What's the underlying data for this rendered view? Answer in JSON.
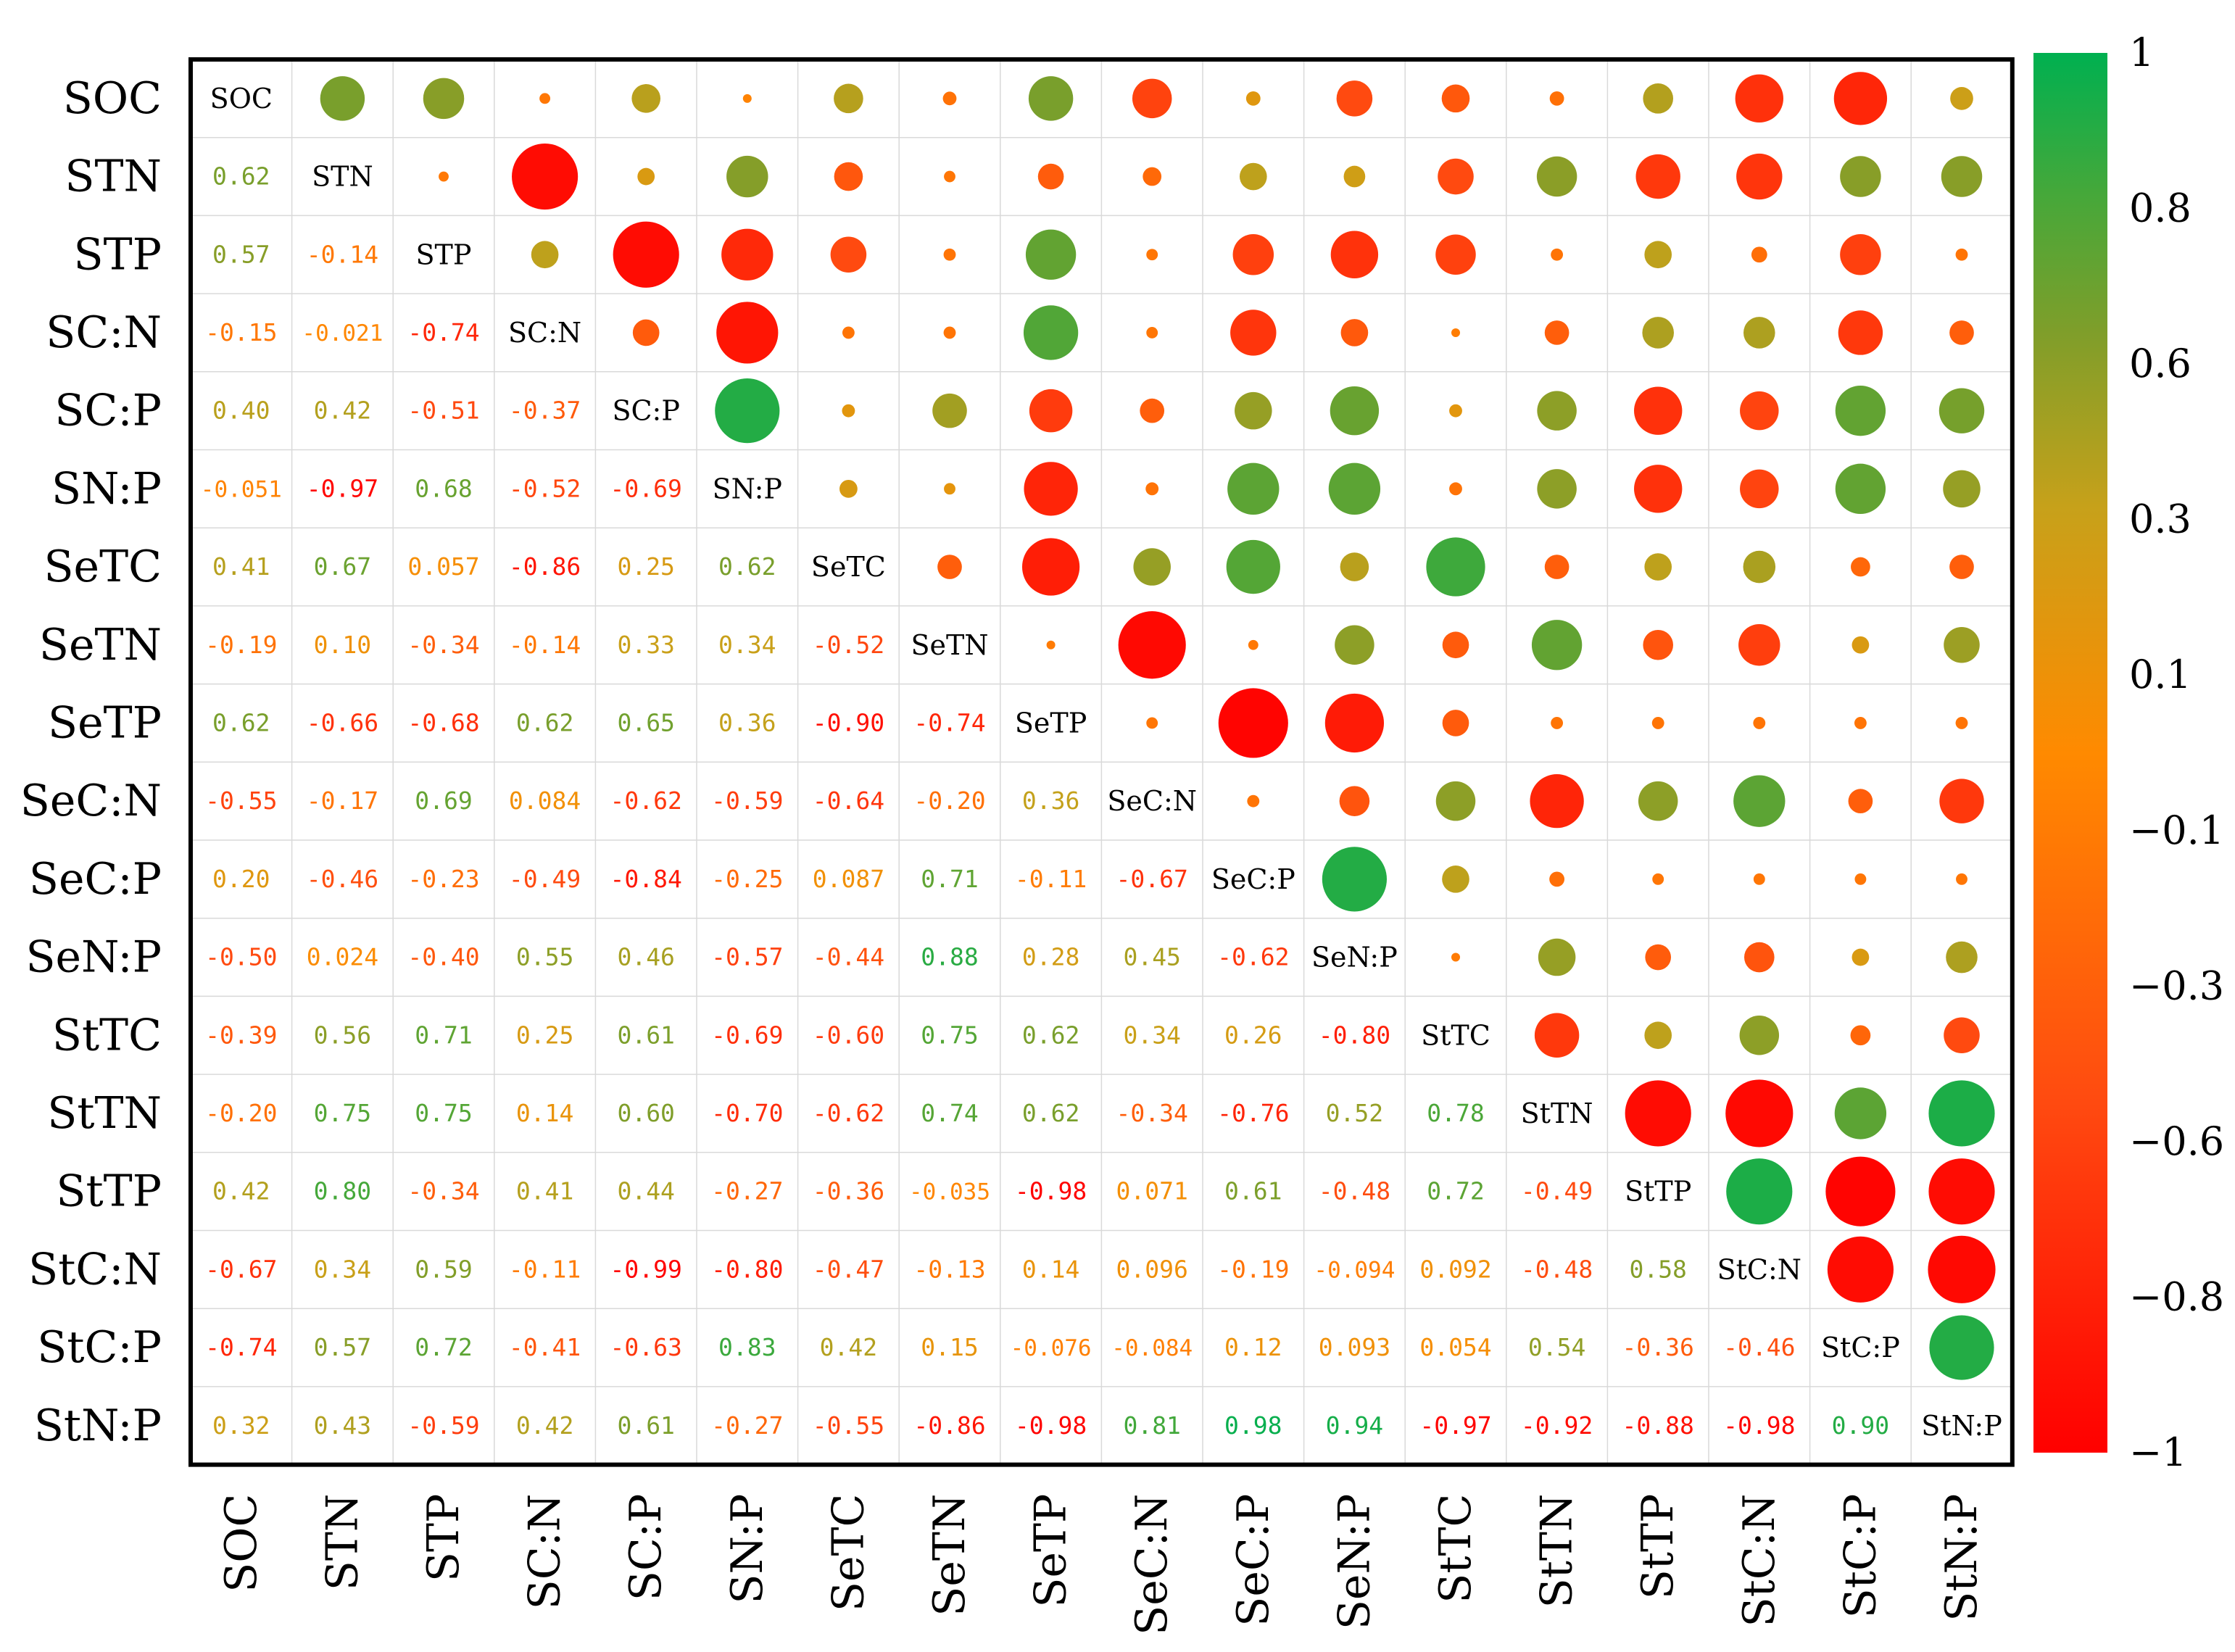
{
  "chart_data": {
    "type": "heatmap",
    "variant": "correlation-matrix-circles-lower-values",
    "variables": [
      "SOC",
      "STN",
      "STP",
      "SC:N",
      "SC:P",
      "SN:P",
      "SeTC",
      "SeTN",
      "SeTP",
      "SeC:N",
      "SeC:P",
      "SeN:P",
      "StTC",
      "StTN",
      "StTP",
      "StC:N",
      "StC:P",
      "StN:P"
    ],
    "lower_labels": [
      [
        "0.62"
      ],
      [
        "0.57",
        "-0.14"
      ],
      [
        "-0.15",
        "-0.021",
        "-0.74"
      ],
      [
        "0.40",
        "0.42",
        "-0.51",
        "-0.37"
      ],
      [
        "-0.051",
        "-0.97",
        "0.68",
        "-0.52",
        "-0.69"
      ],
      [
        "0.41",
        "0.67",
        "0.057",
        "-0.86",
        "0.25",
        "0.62"
      ],
      [
        "-0.19",
        "0.10",
        "-0.34",
        "-0.14",
        "0.33",
        "0.34",
        "-0.52"
      ],
      [
        "0.62",
        "-0.66",
        "-0.68",
        "0.62",
        "0.65",
        "0.36",
        "-0.90",
        "-0.74"
      ],
      [
        "-0.55",
        "-0.17",
        "0.69",
        "0.084",
        "-0.62",
        "-0.59",
        "-0.64",
        "-0.20",
        "0.36"
      ],
      [
        "0.20",
        "-0.46",
        "-0.23",
        "-0.49",
        "-0.84",
        "-0.25",
        "0.087",
        "0.71",
        "-0.11",
        "-0.67"
      ],
      [
        "-0.50",
        "0.024",
        "-0.40",
        "0.55",
        "0.46",
        "-0.57",
        "-0.44",
        "0.88",
        "0.28",
        "0.45",
        "-0.62"
      ],
      [
        "-0.39",
        "0.56",
        "0.71",
        "0.25",
        "0.61",
        "-0.69",
        "-0.60",
        "0.75",
        "0.62",
        "0.34",
        "0.26",
        "-0.80"
      ],
      [
        "-0.20",
        "0.75",
        "0.75",
        "0.14",
        "0.60",
        "-0.70",
        "-0.62",
        "0.74",
        "0.62",
        "-0.34",
        "-0.76",
        "0.52",
        "0.78"
      ],
      [
        "0.42",
        "0.80",
        "-0.34",
        "0.41",
        "0.44",
        "-0.27",
        "-0.36",
        "-0.035",
        "-0.98",
        "0.071",
        "0.61",
        "-0.48",
        "0.72",
        "-0.49"
      ],
      [
        "-0.67",
        "0.34",
        "0.59",
        "-0.11",
        "-0.99",
        "-0.80",
        "-0.47",
        "-0.13",
        "0.14",
        "0.096",
        "-0.19",
        "-0.094",
        "0.092",
        "-0.48",
        "0.58"
      ],
      [
        "-0.74",
        "0.57",
        "0.72",
        "-0.41",
        "-0.63",
        "0.83",
        "0.42",
        "0.15",
        "-0.076",
        "-0.084",
        "0.12",
        "0.093",
        "0.054",
        "0.54",
        "-0.36",
        "-0.46"
      ],
      [
        "0.32",
        "0.43",
        "-0.59",
        "0.42",
        "0.61",
        "-0.27",
        "-0.55",
        "-0.86",
        "-0.98",
        "0.81",
        "0.98",
        "0.94",
        "-0.97",
        "-0.92",
        "-0.88",
        "-0.98",
        "0.90"
      ]
    ],
    "upper_circles": [
      [
        0.62,
        0.57,
        -0.15,
        0.4,
        -0.051,
        0.41,
        -0.19,
        0.62,
        -0.55,
        0.2,
        -0.5,
        -0.39,
        -0.2,
        0.42,
        -0.67,
        -0.74,
        0.32
      ],
      [
        -0.14,
        -0.92,
        0.24,
        0.58,
        -0.4,
        -0.16,
        -0.36,
        -0.26,
        0.38,
        0.3,
        -0.5,
        0.56,
        -0.62,
        -0.64,
        0.57,
        0.57
      ],
      [
        0.38,
        -0.92,
        -0.72,
        -0.5,
        -0.17,
        0.7,
        -0.16,
        -0.57,
        -0.66,
        -0.56,
        -0.17,
        0.38,
        -0.22,
        -0.57,
        -0.17
      ],
      [
        -0.37,
        -0.86,
        -0.17,
        -0.17,
        0.76,
        -0.16,
        -0.64,
        -0.38,
        -0.1,
        -0.34,
        0.44,
        0.44,
        -0.62,
        -0.34
      ],
      [
        0.9,
        0.18,
        0.48,
        -0.6,
        -0.34,
        0.52,
        0.68,
        0.18,
        0.55,
        -0.67,
        -0.54,
        0.7,
        0.63
      ],
      [
        0.25,
        0.16,
        -0.75,
        -0.18,
        0.72,
        0.72,
        -0.18,
        0.55,
        -0.67,
        -0.54,
        0.7,
        0.52
      ],
      [
        -0.34,
        -0.8,
        0.52,
        0.75,
        0.4,
        0.82,
        -0.34,
        0.38,
        0.45,
        -0.27,
        -0.34
      ],
      [
        -0.12,
        -0.94,
        -0.14,
        0.55,
        -0.37,
        0.7,
        -0.42,
        -0.58,
        0.24,
        0.5
      ],
      [
        -0.16,
        -0.97,
        -0.82,
        -0.37,
        -0.17,
        -0.17,
        -0.17,
        -0.17,
        -0.17
      ],
      [
        -0.17,
        -0.42,
        0.55,
        -0.75,
        0.55,
        0.72,
        -0.34,
        -0.62
      ],
      [
        0.9,
        0.38,
        -0.21,
        -0.16,
        -0.16,
        -0.16,
        -0.16
      ],
      [
        -0.12,
        0.52,
        -0.36,
        -0.42,
        0.24,
        0.44
      ],
      [
        -0.62,
        0.38,
        0.55,
        -0.28,
        -0.5
      ],
      [
        -0.92,
        -0.94,
        0.72,
        0.92
      ],
      [
        0.92,
        -0.97,
        -0.92
      ],
      [
        -0.92,
        -0.94
      ],
      [
        0.9
      ]
    ],
    "color_scale": {
      "stops": [
        {
          "value": -1,
          "color": "#ff0000"
        },
        {
          "value": -0.5,
          "color": "#ff4a10"
        },
        {
          "value": 0,
          "color": "#ff8a00"
        },
        {
          "value": 0.35,
          "color": "#c7a11a"
        },
        {
          "value": 0.6,
          "color": "#7f9e2a"
        },
        {
          "value": 0.8,
          "color": "#45a83a"
        },
        {
          "value": 1,
          "color": "#00b050"
        }
      ],
      "ticks": [
        "1",
        "0.8",
        "0.6",
        "0.3",
        "0.1",
        "−0.1",
        "−0.3",
        "−0.6",
        "−0.8",
        "−1"
      ],
      "tick_values": [
        1,
        0.8,
        0.6,
        0.3,
        0.1,
        -0.1,
        -0.3,
        -0.6,
        -0.8,
        -1
      ]
    },
    "colors": {
      "grid": "#d9d9d9",
      "frame": "#000000",
      "label_text": "#000000"
    }
  }
}
